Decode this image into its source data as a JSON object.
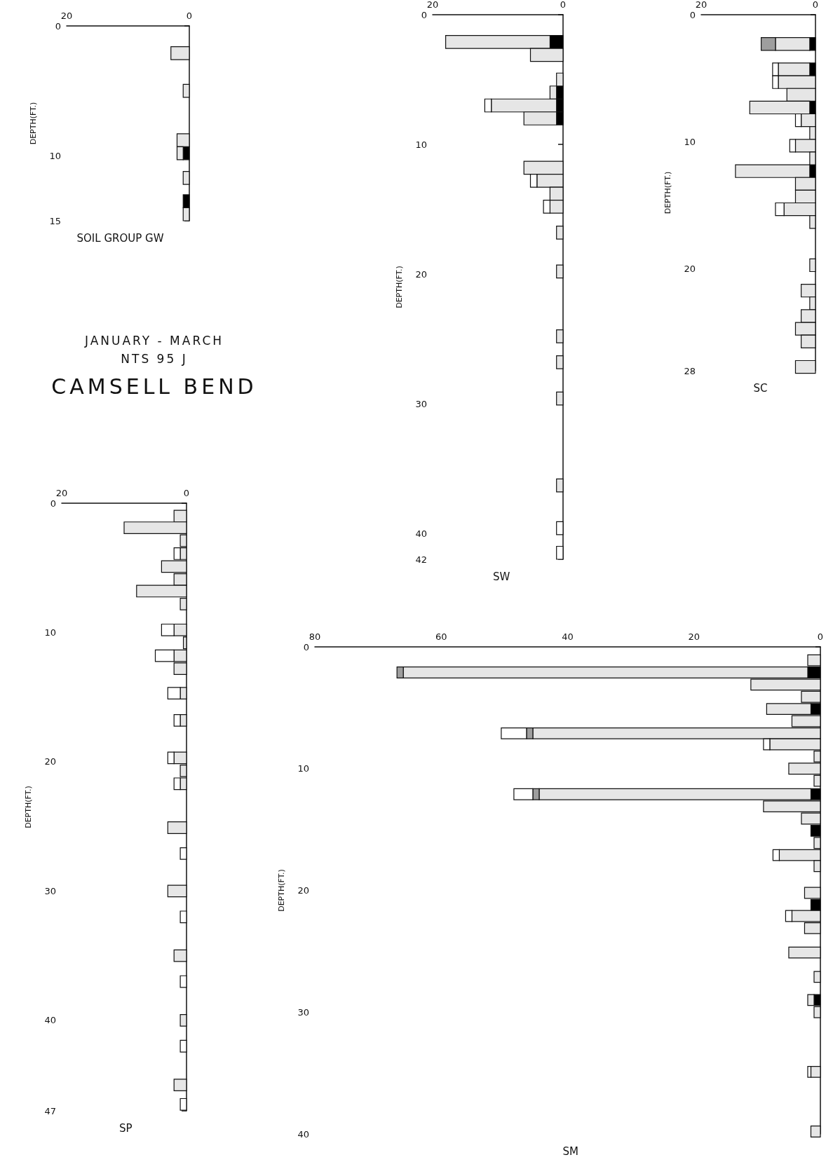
{
  "chart_data": [
    {
      "type": "bar",
      "orientation": "horizontal",
      "stacked": true,
      "title": "SOIL GROUP GW",
      "ylabel": "DEPTH(FT.)",
      "xlim": [
        20,
        0
      ],
      "xticks": [
        20,
        0
      ],
      "ylim": [
        15,
        0
      ],
      "yticks": [
        0,
        10,
        15
      ],
      "x": [
        2.1,
        5.0,
        8.8,
        9.8,
        11.7,
        13.5,
        14.5
      ],
      "series": [
        {
          "color": "#000000",
          "values": [
            null,
            null,
            null,
            1,
            null,
            1,
            null
          ]
        },
        {
          "color": "#e6e6e6",
          "values": [
            3,
            1,
            2,
            1,
            1,
            null,
            1
          ]
        }
      ]
    },
    {
      "type": "other",
      "title": "CAMSELL BEND",
      "annotations": [
        "JANUARY - MARCH",
        "NTS 95 J"
      ]
    },
    {
      "type": "bar",
      "orientation": "horizontal",
      "stacked": true,
      "title": "SW",
      "ylabel": "DEPTH(FT.)",
      "xlim": [
        20,
        0
      ],
      "xticks": [
        20,
        0
      ],
      "ylim": [
        42,
        0
      ],
      "yticks": [
        0,
        10,
        20,
        30,
        40,
        42
      ],
      "x": [
        2.1,
        3.1,
        5.0,
        6.0,
        7.0,
        8.0,
        11.8,
        12.8,
        13.8,
        14.8,
        16.8,
        19.8,
        24.8,
        26.8,
        29.6,
        36.3,
        39.6,
        41.5
      ],
      "series": [
        {
          "color": "#000000",
          "values": [
            2,
            null,
            null,
            1,
            1,
            1,
            null,
            null,
            null,
            null,
            null,
            null,
            null,
            null,
            null,
            null,
            null,
            null
          ]
        },
        {
          "color": "#e6e6e6",
          "values": [
            16,
            5,
            1,
            1,
            10,
            5,
            6,
            4,
            2,
            2,
            1,
            1,
            1,
            1,
            1,
            1,
            null,
            null
          ]
        },
        {
          "color": "#ffffff",
          "values": [
            null,
            null,
            null,
            null,
            1,
            null,
            null,
            1,
            null,
            1,
            null,
            null,
            null,
            null,
            null,
            null,
            1,
            1
          ]
        }
      ]
    },
    {
      "type": "bar",
      "orientation": "horizontal",
      "stacked": true,
      "title": "SC",
      "ylabel": "DEPTH(FT.)",
      "xlim": [
        20,
        0
      ],
      "xticks": [
        20,
        0
      ],
      "ylim": [
        28,
        0
      ],
      "yticks": [
        0,
        10,
        20,
        28
      ],
      "x": [
        2.3,
        4.3,
        5.3,
        6.3,
        7.3,
        8.3,
        9.3,
        10.3,
        11.3,
        12.3,
        13.3,
        14.3,
        15.3,
        16.3,
        19.7,
        21.7,
        22.7,
        23.7,
        24.7,
        25.7,
        27.7
      ],
      "series": [
        {
          "color": "#000000",
          "values": [
            1,
            1,
            null,
            null,
            1,
            null,
            null,
            null,
            null,
            1,
            null,
            null,
            null,
            null,
            null,
            null,
            null,
            null,
            null,
            null,
            null
          ]
        },
        {
          "color": "#e6e6e6",
          "values": [
            6,
            5.5,
            6.5,
            5,
            10.5,
            2.5,
            1,
            3.5,
            1,
            13,
            3.5,
            3.5,
            5.5,
            1,
            1,
            2.5,
            1,
            2.5,
            3.5,
            2.5,
            3.5
          ]
        },
        {
          "color": "#9e9e9e",
          "values": [
            2.5,
            null,
            null,
            null,
            null,
            null,
            null,
            null,
            null,
            null,
            null,
            null,
            null,
            null,
            null,
            null,
            null,
            null,
            null,
            null,
            null
          ]
        },
        {
          "color": "#ffffff",
          "values": [
            null,
            1,
            1,
            null,
            null,
            1,
            null,
            1,
            null,
            null,
            null,
            null,
            1.5,
            null,
            null,
            null,
            null,
            null,
            null,
            null,
            null
          ]
        }
      ]
    },
    {
      "type": "bar",
      "orientation": "horizontal",
      "stacked": true,
      "title": "SP",
      "ylabel": "DEPTH(FT.)",
      "xlim": [
        20,
        0
      ],
      "xticks": [
        20,
        0
      ],
      "ylim": [
        47,
        0
      ],
      "yticks": [
        0,
        10,
        20,
        30,
        40,
        47
      ],
      "x": [
        1.0,
        1.9,
        2.9,
        3.9,
        4.9,
        5.9,
        6.8,
        7.8,
        9.8,
        10.8,
        11.8,
        12.8,
        14.7,
        16.8,
        19.7,
        20.7,
        21.7,
        25.1,
        27.1,
        30.0,
        32.0,
        35.0,
        37.0,
        40.0,
        42.0,
        45.0,
        46.5
      ],
      "series": [
        {
          "color": "#e6e6e6",
          "values": [
            2,
            10,
            1,
            1,
            4,
            2,
            8,
            1,
            2,
            0.5,
            2,
            2,
            1,
            1,
            2,
            1,
            1,
            3,
            null,
            3,
            null,
            2,
            null,
            1,
            null,
            2,
            null
          ]
        },
        {
          "color": "#ffffff",
          "values": [
            null,
            null,
            null,
            1,
            null,
            null,
            null,
            null,
            2,
            null,
            3,
            null,
            2,
            1,
            1,
            null,
            1,
            null,
            1,
            null,
            1,
            null,
            1,
            null,
            1,
            null,
            1
          ]
        }
      ]
    },
    {
      "type": "bar",
      "orientation": "horizontal",
      "stacked": true,
      "title": "SM",
      "ylabel": "DEPTH(FT.)",
      "xlim": [
        80,
        0
      ],
      "xticks": [
        80,
        60,
        40,
        20,
        0
      ],
      "ylim": [
        40,
        0
      ],
      "yticks": [
        0,
        10,
        20,
        30,
        40
      ],
      "x": [
        1.1,
        2.1,
        3.1,
        4.1,
        5.1,
        6.1,
        7.1,
        8.0,
        9.0,
        10.0,
        11.0,
        12.1,
        13.1,
        14.1,
        15.1,
        16.1,
        17.1,
        18.0,
        20.2,
        21.2,
        22.1,
        23.1,
        25.1,
        27.1,
        29.0,
        30.0,
        34.9,
        39.8
      ],
      "series": [
        {
          "color": "#000000",
          "values": [
            null,
            2,
            null,
            null,
            1.5,
            null,
            null,
            null,
            null,
            null,
            null,
            1.5,
            null,
            null,
            1.5,
            null,
            null,
            null,
            null,
            1.5,
            null,
            null,
            null,
            null,
            1,
            null,
            null,
            null
          ]
        },
        {
          "color": "#e6e6e6",
          "values": [
            2,
            64,
            11,
            3,
            7,
            4.5,
            45.5,
            8,
            1,
            5,
            1,
            43,
            9,
            3,
            null,
            1,
            6.5,
            1,
            2.5,
            null,
            4.5,
            2.5,
            5,
            1,
            1,
            1,
            1.5,
            1.5
          ]
        },
        {
          "color": "#9e9e9e",
          "values": [
            null,
            1,
            null,
            null,
            null,
            null,
            1,
            null,
            null,
            null,
            null,
            1,
            null,
            null,
            null,
            null,
            null,
            null,
            null,
            null,
            null,
            null,
            null,
            null,
            null,
            null,
            null,
            null
          ]
        },
        {
          "color": "#ffffff",
          "values": [
            null,
            null,
            null,
            null,
            null,
            null,
            4,
            1,
            null,
            null,
            null,
            3,
            null,
            null,
            null,
            null,
            1,
            null,
            null,
            null,
            1,
            null,
            null,
            null,
            null,
            null,
            0.5,
            null
          ]
        }
      ]
    }
  ]
}
